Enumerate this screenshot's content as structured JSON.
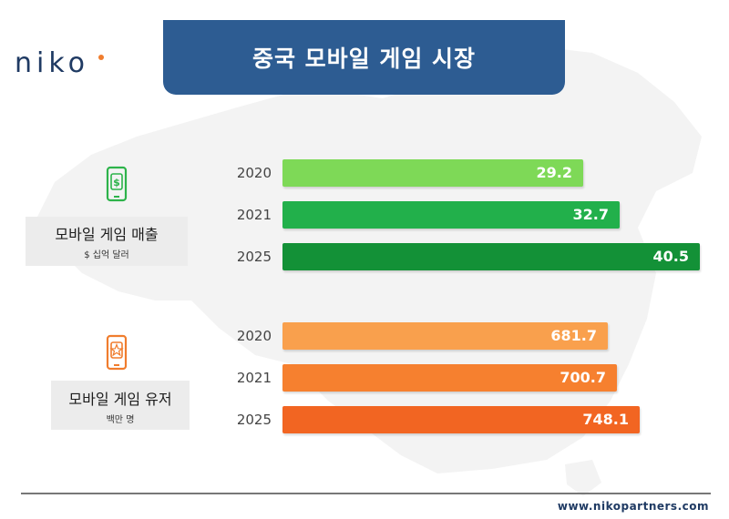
{
  "brand": {
    "logo": "niko",
    "url": "www.nikopartners.com",
    "accent": "#f07d2e",
    "navy": "#2d5c92"
  },
  "title": "중국 모바일 게임 시장",
  "chart_data": [
    {
      "type": "bar",
      "orientation": "horizontal",
      "title": "모바일 게임 매출",
      "unit": "$ 십억 달러",
      "icon": "mobile-dollar-icon",
      "icon_color": "#2db34a",
      "categories": [
        "2020",
        "2021",
        "2025"
      ],
      "values": [
        29.2,
        32.7,
        40.5
      ],
      "colors": [
        "#7ed957",
        "#22b04b",
        "#139137"
      ]
    },
    {
      "type": "bar",
      "orientation": "horizontal",
      "title": "모바일 게임 유저",
      "unit": "백만 명",
      "icon": "mobile-star-icon",
      "icon_color": "#f07d2e",
      "categories": [
        "2020",
        "2021",
        "2025"
      ],
      "values": [
        681.7,
        700.7,
        748.1
      ],
      "colors": [
        "#f9a04d",
        "#f6802f",
        "#f26522"
      ]
    }
  ]
}
